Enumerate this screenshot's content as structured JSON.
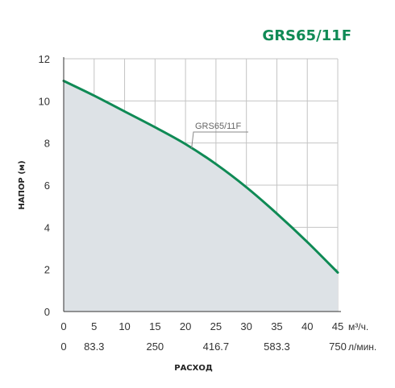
{
  "chart_data": {
    "type": "area",
    "title": "GRS65/11F",
    "xlabel": "РАСХОД",
    "ylabel": "НАПОР (м)",
    "x_unit": "м³/ч.",
    "x2_unit": "л/мин.",
    "xlim": [
      0,
      45
    ],
    "ylim": [
      0,
      12
    ],
    "x_ticks": [
      0,
      5,
      10,
      15,
      20,
      25,
      30,
      35,
      40,
      45
    ],
    "x2_ticks": [
      {
        "x": 0,
        "label": "0"
      },
      {
        "x": 5,
        "label": "83.3"
      },
      {
        "x": 15,
        "label": "250"
      },
      {
        "x": 25,
        "label": "416.7"
      },
      {
        "x": 35,
        "label": "583.3"
      },
      {
        "x": 45,
        "label": "750"
      }
    ],
    "y_ticks": [
      0,
      2,
      4,
      6,
      8,
      10,
      12
    ],
    "grid": true,
    "series": [
      {
        "name": "GRS65/11F",
        "x": [
          0,
          5,
          10,
          15,
          20,
          25,
          30,
          35,
          40,
          45
        ],
        "y": [
          10.95,
          10.25,
          9.5,
          8.75,
          7.95,
          7.0,
          5.9,
          4.65,
          3.3,
          1.85
        ]
      }
    ],
    "colors": {
      "line": "#0f8a55",
      "fill": "#dde2e6",
      "grid": "#c4c4c4",
      "title": "#0f8a55"
    }
  }
}
